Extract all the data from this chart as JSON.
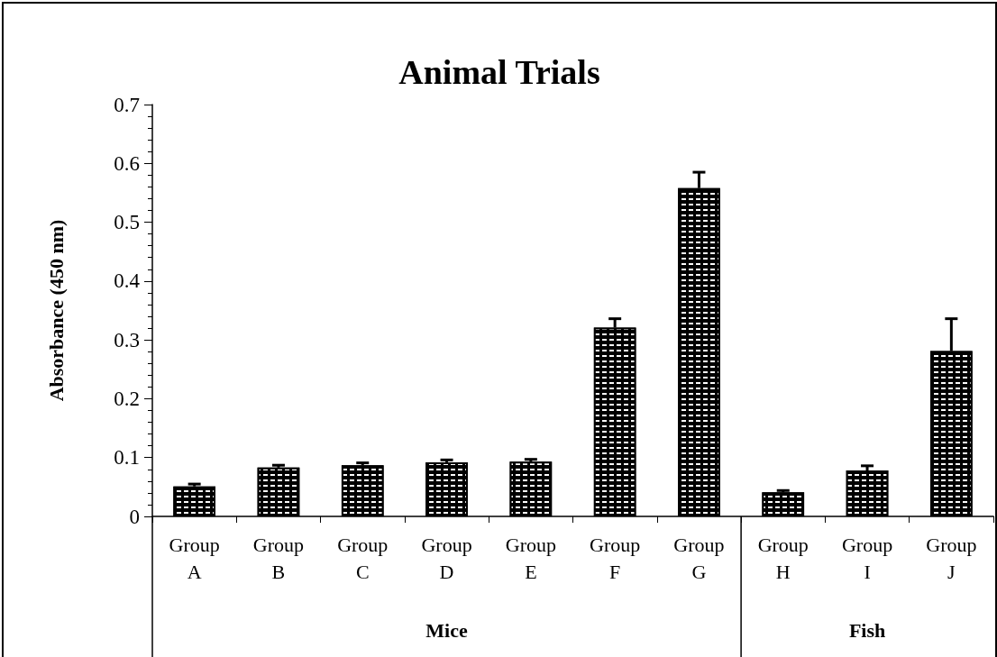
{
  "chart_data": {
    "type": "bar",
    "title": "Animal Trials",
    "ylabel": "Absorbance (450 nm)",
    "categories": [
      "Group A",
      "Group B",
      "Group C",
      "Group D",
      "Group E",
      "Group F",
      "Group G",
      "Group H",
      "Group I",
      "Group J"
    ],
    "values": [
      0.051,
      0.083,
      0.087,
      0.092,
      0.093,
      0.321,
      0.558,
      0.041,
      0.078,
      0.281
    ],
    "errors": [
      [
        0.051,
        0.055
      ],
      [
        0.083,
        0.087
      ],
      [
        0.087,
        0.091
      ],
      [
        0.092,
        0.096
      ],
      [
        0.093,
        0.097
      ],
      [
        0.321,
        0.336
      ],
      [
        0.558,
        0.585
      ],
      [
        0.041,
        0.044
      ],
      [
        0.078,
        0.086
      ],
      [
        0.281,
        0.336
      ]
    ],
    "color": "#000000",
    "ylim": [
      0,
      0.7
    ],
    "yticks": [
      0,
      0.1,
      0.2,
      0.3,
      0.4,
      0.5,
      0.6,
      0.7
    ],
    "annotations": [
      "Mice",
      "Fish"
    ],
    "grid": false
  }
}
